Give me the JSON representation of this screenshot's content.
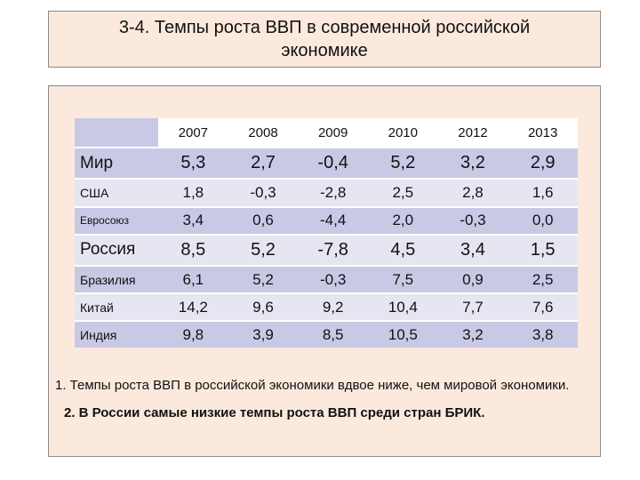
{
  "title": "3-4. Темпы роста ВВП в современной российской экономике",
  "table": {
    "years": [
      "2007",
      "2008",
      "2009",
      "2010",
      "2012",
      "2013"
    ],
    "rows": [
      {
        "country": "Мир",
        "values": [
          "5,3",
          "2,7",
          "-0,4",
          "5,2",
          "3,2",
          "2,9"
        ]
      },
      {
        "country": "США",
        "values": [
          "1,8",
          "-0,3",
          "-2,8",
          "2,5",
          "2,8",
          "1,6"
        ]
      },
      {
        "country": "Евросоюз",
        "values": [
          "3,4",
          "0,6",
          "-4,4",
          "2,0",
          "-0,3",
          "0,0"
        ]
      },
      {
        "country": "Россия",
        "values": [
          "8,5",
          "5,2",
          "-7,8",
          "4,5",
          "3,4",
          "1,5"
        ]
      },
      {
        "country": "Бразилия",
        "values": [
          "6,1",
          "5,2",
          "-0,3",
          "7,5",
          "0,9",
          "2,5"
        ]
      },
      {
        "country": "Китай",
        "values": [
          "14,2",
          "9,6",
          "9,2",
          "10,4",
          "7,7",
          "7,6"
        ]
      },
      {
        "country": "Индия",
        "values": [
          "9,8",
          "3,9",
          "8,5",
          "10,5",
          "3,2",
          "3,8"
        ]
      }
    ]
  },
  "notes": [
    "1. Темпы роста ВВП в российской экономики вдвое ниже, чем мировой экономики.",
    "2. В России самые низкие темпы роста ВВП среди стран БРИК."
  ]
}
